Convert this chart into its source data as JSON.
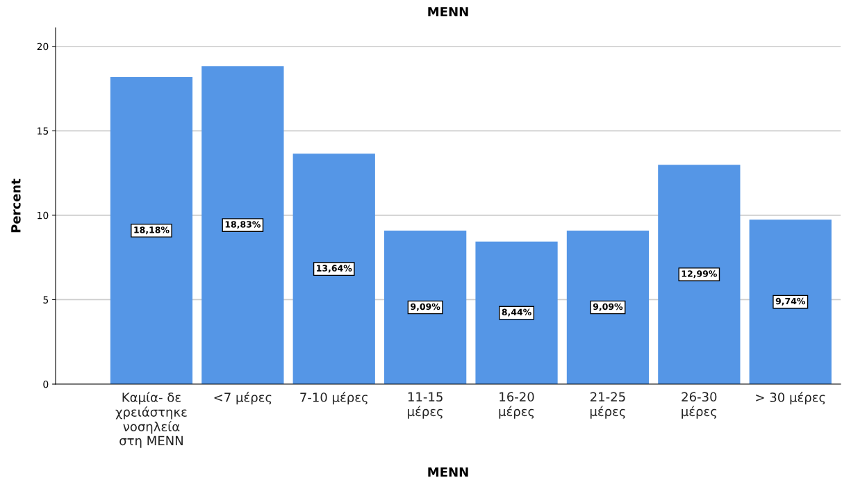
{
  "chart_data": {
    "type": "bar",
    "title": "MENN",
    "xlabel": "MENN",
    "ylabel": "Percent",
    "categories": [
      "Καμία- δε\nχρειάστηκε\nνοσηλεία\nστη MENN",
      "<7 μέρες",
      "7-10 μέρες",
      "11-15\nμέρες",
      "16-20\nμέρες",
      "21-25\nμέρες",
      "26-30\nμέρες",
      "> 30 μέρες"
    ],
    "values": [
      18.18,
      18.83,
      13.64,
      9.09,
      8.44,
      9.09,
      12.99,
      9.74
    ],
    "value_labels": [
      "18,18%",
      "18,83%",
      "13,64%",
      "9,09%",
      "8,44%",
      "9,09%",
      "12,99%",
      "9,74%"
    ],
    "color": "#5596e6",
    "ylim": [
      0,
      21.1
    ],
    "yticks": [
      0,
      5,
      10,
      15,
      20
    ],
    "grid": "y"
  }
}
